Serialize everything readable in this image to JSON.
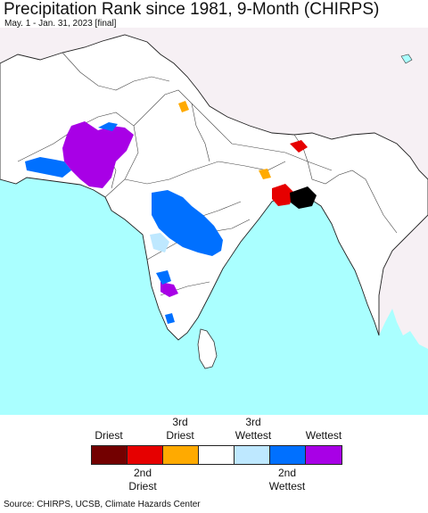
{
  "header": {
    "title": "Precipitation Rank since 1981, 9-Month (CHIRPS)",
    "subtitle": "May. 1 - Jan. 31, 2023 [final]"
  },
  "map": {
    "ocean_color": "#aaffff",
    "land_color": "#f6f0f4",
    "country_fill": "#ffffff"
  },
  "legend": {
    "top_labels": [
      {
        "line1": "",
        "line2": "Driest"
      },
      {
        "line1": "3rd",
        "line2": "Driest"
      },
      {
        "line1": "3rd",
        "line2": "Wettest"
      },
      {
        "line1": "",
        "line2": "Wettest"
      }
    ],
    "bottom_labels": [
      {
        "line1": "2nd",
        "line2": "Driest"
      },
      {
        "line1": "2nd",
        "line2": "Wettest"
      }
    ],
    "colors": [
      "#730000",
      "#e60000",
      "#ffaa00",
      "#ffffff",
      "#bee8ff",
      "#0070ff",
      "#a800e6"
    ]
  },
  "footer": {
    "source": "Source: CHIRPS, UCSB, Climate Hazards Center"
  }
}
